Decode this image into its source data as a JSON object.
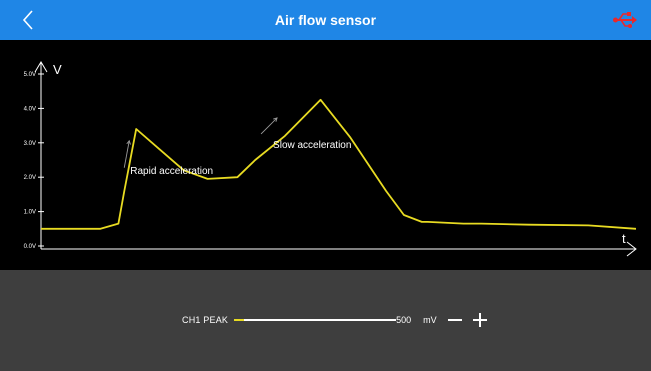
{
  "header": {
    "title": "Air flow sensor",
    "back_icon": "back-chevron-icon",
    "usb_icon": "usb-connection-icon",
    "usb_color": "#e8292b",
    "bar_color": "#1f86e6"
  },
  "chart_data": {
    "type": "line",
    "ylabel": "V",
    "xlabel": "t",
    "y_ticks": [
      "5.0V",
      "4.0V",
      "3.0V",
      "2.0V",
      "1.0V",
      "0.0V"
    ],
    "ylim": [
      0,
      5
    ],
    "line_color": "#e8db22",
    "series": [
      {
        "x": [
          0,
          6,
          10,
          13,
          14,
          16,
          20,
          24,
          28,
          33,
          36,
          41,
          47,
          52,
          58,
          61,
          64,
          65,
          71,
          74,
          82,
          92,
          100
        ],
        "y": [
          0.5,
          0.5,
          0.5,
          0.65,
          1.6,
          3.4,
          2.8,
          2.2,
          1.95,
          2.0,
          2.5,
          3.2,
          4.25,
          3.15,
          1.6,
          0.9,
          0.7,
          0.7,
          0.65,
          0.65,
          0.62,
          0.6,
          0.5
        ]
      }
    ],
    "annotations": [
      {
        "text": "Rapid acceleration",
        "x": 15,
        "y": 2.1
      },
      {
        "text": "Slow acceleration",
        "x": 39,
        "y": 2.85
      }
    ]
  },
  "controls": {
    "channel_label": "CH1 PEAK",
    "value": "500",
    "unit": "mV",
    "slider_level": 0.06,
    "slider_color": "#e8db22",
    "minus_icon": "minus-icon",
    "plus_icon": "plus-icon"
  }
}
